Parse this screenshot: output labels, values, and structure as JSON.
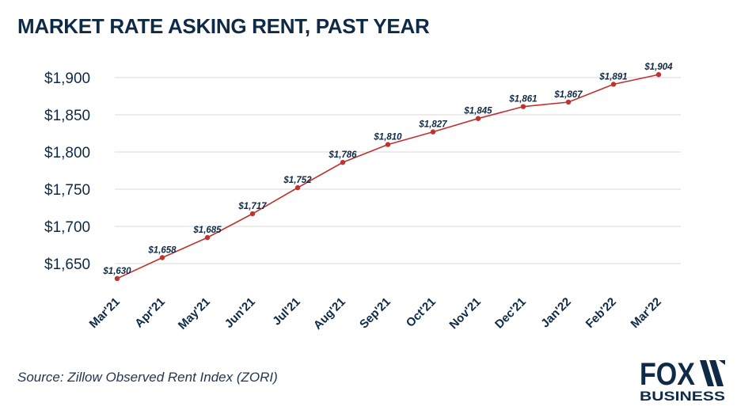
{
  "header": {
    "title": "MARKET RATE ASKING RENT, PAST YEAR"
  },
  "footer": {
    "source": "Source: Zillow Observed Rent Index (ZORI)"
  },
  "logo": {
    "line1": "FOX",
    "line2": "BUSINESS"
  },
  "colors": {
    "line": "#c0322f",
    "point": "#c0322f",
    "text": "#0e2a47",
    "grid": "#d9d9d9"
  },
  "chart_data": {
    "type": "line",
    "title": "MARKET RATE ASKING RENT, PAST YEAR",
    "categories": [
      "Mar'21",
      "Apr'21",
      "May'21",
      "Jun'21",
      "Jul'21",
      "Aug'21",
      "Sep'21",
      "Oct'21",
      "Nov'21",
      "Dec'21",
      "Jan'22",
      "Feb'22",
      "Mar'22"
    ],
    "values": [
      1630,
      1658,
      1685,
      1717,
      1752,
      1786,
      1810,
      1827,
      1845,
      1861,
      1867,
      1891,
      1904
    ],
    "data_labels": [
      "$1,630",
      "$1,658",
      "$1,685",
      "$1,717",
      "$1,752",
      "$1,786",
      "$1,810",
      "$1,827",
      "$1,845",
      "$1,861",
      "$1,867",
      "$1,891",
      "$1,904"
    ],
    "yticks": [
      1650,
      1700,
      1750,
      1800,
      1850,
      1900
    ],
    "ytick_labels": [
      "$1,650",
      "$1,700",
      "$1,750",
      "$1,800",
      "$1,850",
      "$1,900"
    ],
    "ylim": [
      1625,
      1912
    ],
    "grid": true,
    "legend": "none"
  }
}
